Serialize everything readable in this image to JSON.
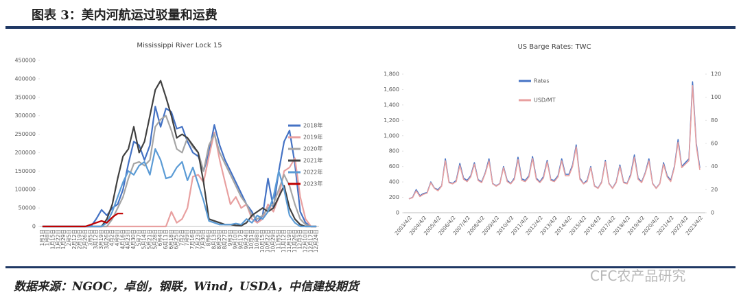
{
  "header": {
    "title": "图表 3：美内河航运过驳量和运费"
  },
  "chart_data": [
    {
      "type": "line",
      "title": "Mississippi River Lock 15",
      "categories": [
        "1月1日",
        "1月8日",
        "1月15日",
        "1月22日",
        "1月29日",
        "2月5日",
        "2月12日",
        "2月19日",
        "2月26日",
        "3月5日",
        "3月12日",
        "3月19日",
        "3月26日",
        "4月2日",
        "4月9日",
        "4月16日",
        "4月23日",
        "4月30日",
        "5月7日",
        "5月14日",
        "5月21日",
        "5月28日",
        "6月4日",
        "6月11日",
        "6月18日",
        "6月25日",
        "7月2日",
        "7月9日",
        "7月16日",
        "7月23日",
        "7月30日",
        "8月6日",
        "8月13日",
        "8月20日",
        "8月27日",
        "9月3日",
        "9月10日",
        "9月17日",
        "9月24日",
        "10月1日",
        "10月8日",
        "10月15日",
        "10月22日",
        "10月29日",
        "11月5日",
        "11月12日",
        "11月19日",
        "11月26日",
        "12月3日",
        "12月10日",
        "12月17日",
        "12月24日"
      ],
      "series": [
        {
          "name": "2018年",
          "color": "#4472c4",
          "values": [
            0,
            0,
            0,
            0,
            0,
            0,
            0,
            0,
            0,
            0,
            20000,
            45000,
            30000,
            50000,
            60000,
            100000,
            170000,
            230000,
            220000,
            180000,
            220000,
            325000,
            270000,
            320000,
            310000,
            265000,
            270000,
            230000,
            200000,
            190000,
            150000,
            200000,
            275000,
            220000,
            180000,
            150000,
            120000,
            90000,
            60000,
            40000,
            10000,
            30000,
            130000,
            50000,
            150000,
            230000,
            260000,
            170000,
            40000,
            10000,
            0,
            0
          ]
        },
        {
          "name": "2019年",
          "color": "#e8a0a0",
          "values": [
            0,
            0,
            0,
            0,
            0,
            0,
            0,
            0,
            0,
            0,
            0,
            0,
            0,
            0,
            0,
            0,
            0,
            0,
            0,
            0,
            0,
            0,
            0,
            0,
            40000,
            10000,
            20000,
            50000,
            135000,
            140000,
            120000,
            190000,
            255000,
            180000,
            120000,
            60000,
            80000,
            50000,
            60000,
            20000,
            10000,
            20000,
            60000,
            40000,
            80000,
            150000,
            160000,
            185000,
            80000,
            20000,
            0,
            0
          ]
        },
        {
          "name": "2020年",
          "color": "#a5a5a5",
          "values": [
            0,
            0,
            0,
            0,
            0,
            0,
            0,
            0,
            0,
            0,
            0,
            0,
            0,
            20000,
            50000,
            80000,
            130000,
            170000,
            175000,
            165000,
            180000,
            270000,
            290000,
            300000,
            260000,
            210000,
            200000,
            240000,
            215000,
            200000,
            150000,
            220000,
            250000,
            200000,
            170000,
            140000,
            110000,
            80000,
            60000,
            30000,
            20000,
            30000,
            50000,
            60000,
            100000,
            140000,
            110000,
            60000,
            20000,
            5000,
            0,
            0
          ]
        },
        {
          "name": "2021年",
          "color": "#404040",
          "values": [
            0,
            0,
            0,
            0,
            0,
            0,
            0,
            0,
            0,
            0,
            0,
            0,
            20000,
            60000,
            130000,
            190000,
            210000,
            270000,
            200000,
            230000,
            300000,
            370000,
            395000,
            350000,
            300000,
            240000,
            250000,
            240000,
            220000,
            200000,
            120000,
            20000,
            15000,
            10000,
            5000,
            5000,
            3000,
            2000,
            10000,
            30000,
            40000,
            50000,
            40000,
            50000,
            80000,
            110000,
            50000,
            20000,
            5000,
            0,
            0,
            0
          ]
        },
        {
          "name": "2022年",
          "color": "#5b9bd5",
          "values": [
            0,
            0,
            0,
            0,
            0,
            0,
            0,
            0,
            0,
            0,
            0,
            0,
            10000,
            40000,
            80000,
            120000,
            150000,
            140000,
            165000,
            175000,
            140000,
            210000,
            180000,
            130000,
            135000,
            160000,
            175000,
            125000,
            160000,
            115000,
            70000,
            15000,
            10000,
            5000,
            5000,
            5000,
            8000,
            5000,
            20000,
            10000,
            30000,
            20000,
            40000,
            80000,
            150000,
            100000,
            30000,
            10000,
            0,
            0,
            0,
            0
          ]
        },
        {
          "name": "2023年",
          "color": "#c00000",
          "values": [
            0,
            0,
            0,
            0,
            0,
            0,
            0,
            0,
            0,
            5000,
            10000,
            15000,
            10000,
            25000,
            35000,
            35000,
            null,
            null,
            null,
            null,
            null,
            null,
            null,
            null,
            null,
            null,
            null,
            null,
            null,
            null,
            null,
            null,
            null,
            null,
            null,
            null,
            null,
            null,
            null,
            null,
            null,
            null,
            null,
            null,
            null,
            null,
            null,
            null,
            null,
            null,
            null,
            null
          ]
        }
      ],
      "ylim": [
        0,
        450000
      ],
      "yticks": [
        0,
        50000,
        100000,
        150000,
        200000,
        250000,
        300000,
        350000,
        400000,
        450000
      ],
      "grid": false,
      "legend": "right"
    },
    {
      "type": "line",
      "title": "US Barge Rates: TWC",
      "x": [
        "2003/4/2",
        "2003/7/2",
        "2003/10/2",
        "2004/1/2",
        "2004/4/2",
        "2004/7/2",
        "2004/10/2",
        "2005/1/2",
        "2005/4/2",
        "2005/7/2",
        "2005/10/2",
        "2006/1/2",
        "2006/4/2",
        "2006/7/2",
        "2006/10/2",
        "2007/1/2",
        "2007/4/2",
        "2007/7/2",
        "2007/10/2",
        "2008/1/2",
        "2008/4/2",
        "2008/7/2",
        "2008/10/2",
        "2009/1/2",
        "2009/4/2",
        "2009/7/2",
        "2009/10/2",
        "2010/1/2",
        "2010/4/2",
        "2010/7/2",
        "2010/10/2",
        "2011/1/2",
        "2011/4/2",
        "2011/7/2",
        "2011/10/2",
        "2012/1/2",
        "2012/4/2",
        "2012/7/2",
        "2012/10/2",
        "2013/1/2",
        "2013/4/2",
        "2013/7/2",
        "2013/10/2",
        "2014/1/2",
        "2014/4/2",
        "2014/7/2",
        "2014/10/2",
        "2015/1/2",
        "2015/4/2",
        "2015/7/2",
        "2015/10/2",
        "2016/1/2",
        "2016/4/2",
        "2016/7/2",
        "2016/10/2",
        "2017/1/2",
        "2017/4/2",
        "2017/7/2",
        "2017/10/2",
        "2018/1/2",
        "2018/4/2",
        "2018/7/2",
        "2018/10/2",
        "2019/1/2",
        "2019/4/2",
        "2019/7/2",
        "2019/10/2",
        "2020/1/2",
        "2020/4/2",
        "2020/7/2",
        "2020/10/2",
        "2021/1/2",
        "2021/4/2",
        "2021/7/2",
        "2021/10/2",
        "2022/1/2",
        "2022/4/2",
        "2022/7/2",
        "2022/10/2",
        "2023/1/2",
        "2023/4/2"
      ],
      "series": [
        {
          "name": "Rates",
          "color": "#4472c4",
          "values": [
            180,
            200,
            300,
            220,
            250,
            260,
            400,
            320,
            300,
            350,
            700,
            400,
            380,
            420,
            640,
            450,
            420,
            480,
            650,
            430,
            400,
            520,
            700,
            380,
            350,
            380,
            600,
            420,
            380,
            450,
            720,
            440,
            420,
            480,
            730,
            450,
            400,
            470,
            680,
            430,
            420,
            480,
            700,
            500,
            500,
            620,
            880,
            450,
            380,
            420,
            600,
            350,
            320,
            400,
            680,
            380,
            320,
            400,
            620,
            400,
            380,
            500,
            750,
            450,
            400,
            520,
            700,
            380,
            320,
            380,
            650,
            480,
            420,
            600,
            950,
            600,
            650,
            700,
            1700,
            900,
            580
          ]
        },
        {
          "name": "USD/MT",
          "color": "#e8a0a0",
          "axis": "y2",
          "values": [
            12,
            13,
            19,
            14,
            16,
            17,
            26,
            21,
            19,
            23,
            45,
            26,
            25,
            27,
            41,
            29,
            27,
            31,
            42,
            28,
            26,
            34,
            45,
            25,
            23,
            25,
            39,
            27,
            25,
            29,
            46,
            28,
            27,
            31,
            47,
            29,
            26,
            30,
            44,
            28,
            27,
            31,
            45,
            32,
            32,
            40,
            57,
            29,
            25,
            27,
            39,
            23,
            21,
            26,
            44,
            25,
            21,
            26,
            40,
            26,
            25,
            32,
            48,
            29,
            26,
            34,
            45,
            25,
            21,
            25,
            42,
            31,
            27,
            39,
            61,
            39,
            42,
            45,
            110,
            58,
            37
          ]
        }
      ],
      "xticks": [
        "2003/4/2",
        "2004/4/2",
        "2005/4/2",
        "2006/4/2",
        "2007/4/2",
        "2008/4/2",
        "2009/4/2",
        "2010/4/2",
        "2011/4/2",
        "2012/4/2",
        "2013/4/2",
        "2014/4/2",
        "2015/4/2",
        "2016/4/2",
        "2017/4/2",
        "2018/4/2",
        "2019/4/2",
        "2020/4/2",
        "2021/4/2",
        "2022/4/2",
        "2023/4/2"
      ],
      "ylim": [
        0,
        1800
      ],
      "yticks": [
        0,
        200,
        400,
        600,
        800,
        {
          "value": 1000,
          "label": "1,000"
        },
        {
          "value": 1200,
          "label": "1,200"
        },
        {
          "value": 1400,
          "label": "1,400"
        },
        {
          "value": 1600,
          "label": "1,600"
        },
        {
          "value": 1800,
          "label": "1,800"
        }
      ],
      "y2lim": [
        0,
        120
      ],
      "y2ticks": [
        0,
        20,
        40,
        60,
        80,
        100,
        120
      ],
      "grid": false,
      "legend": "upper left"
    }
  ],
  "source": "数据来源：NGOC，卓创，钢联，Wind，USDA，中信建投期货",
  "watermark": "CFC农产品研究"
}
